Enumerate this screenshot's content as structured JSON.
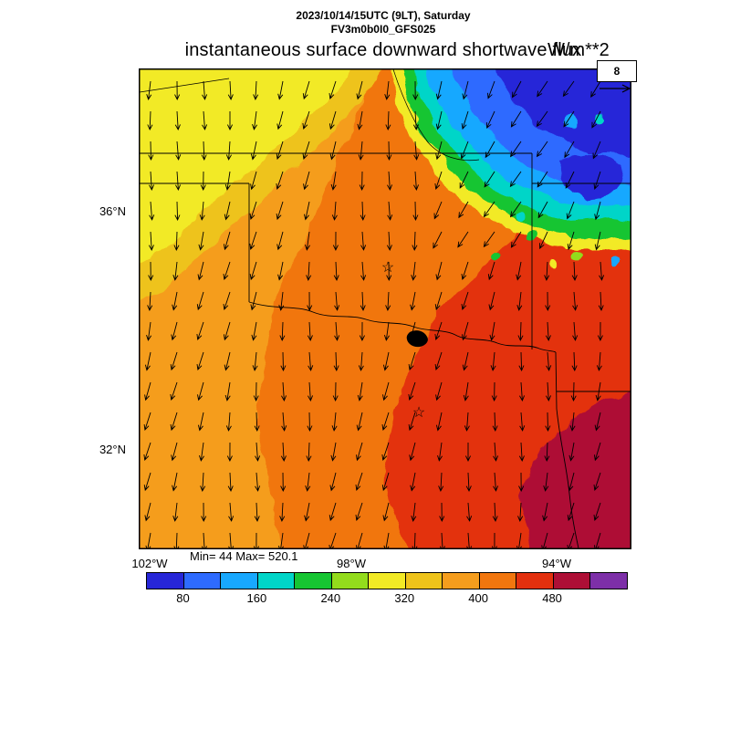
{
  "header": {
    "datetime": "2023/10/14/15UTC (9LT), Saturday",
    "model": "FV3m0b0I0_GFS025"
  },
  "title": {
    "text": "instantaneous surface downward shortwave flux",
    "units": "W/m**2"
  },
  "wind_legend": {
    "value": "8"
  },
  "stats": {
    "min_max": "Min= 44 Max= 520.1"
  },
  "axes": {
    "lat_ticks": [
      "36°N",
      "32°N"
    ],
    "lon_ticks": [
      "102°W",
      "98°W",
      "94°W"
    ]
  },
  "chart_data": {
    "type": "heatmap",
    "title": "instantaneous surface downward shortwave flux",
    "units": "W/m**2",
    "valid_time": "2023/10/14/15UTC (9LT), Saturday",
    "model_run": "FV3m0b0I0_GFS025",
    "min_value": 44,
    "max_value": 520.1,
    "wind_reference_value": 8,
    "lat_ticks": [
      "36°N",
      "32°N"
    ],
    "lon_ticks": [
      "102°W",
      "98°W",
      "94°W"
    ],
    "colorbar": {
      "orientation": "horizontal",
      "tick_labels": [
        80,
        160,
        240,
        320,
        400,
        480
      ],
      "levels": [
        40,
        80,
        120,
        160,
        200,
        240,
        280,
        320,
        360,
        400,
        440,
        480,
        520,
        560
      ],
      "colors": [
        "#2726d8",
        "#2e6bff",
        "#18a8ff",
        "#00d5c8",
        "#16c532",
        "#93dc1c",
        "#f2ea25",
        "#eec31a",
        "#f59d1d",
        "#f1760e",
        "#e3300e",
        "#ae0f36",
        "#7d2fa8"
      ]
    },
    "overlays": [
      "wind-vectors",
      "state-borders",
      "rivers",
      "city-star-markers",
      "lake"
    ]
  }
}
